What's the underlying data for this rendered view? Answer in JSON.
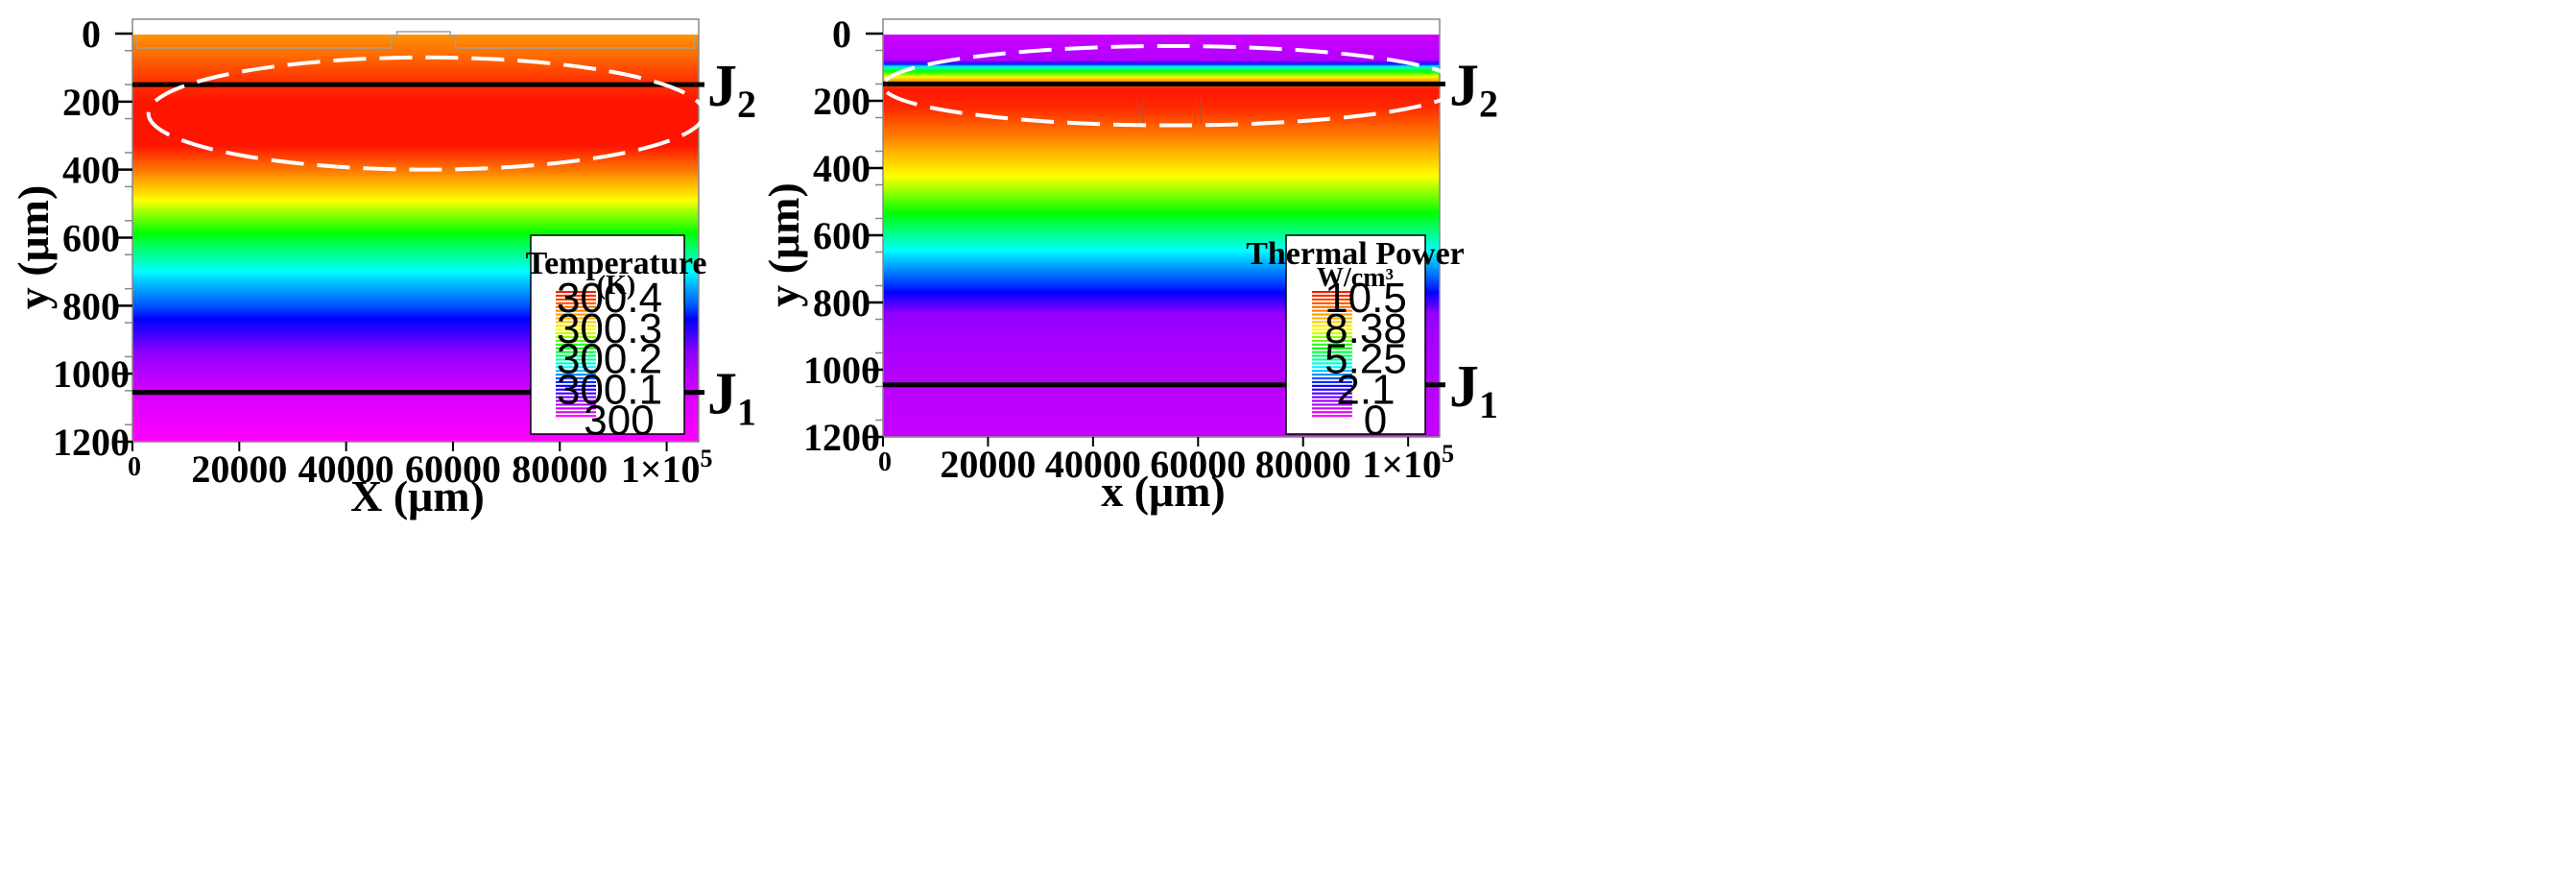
{
  "chart_data": [
    {
      "type": "heatmap",
      "name": "temperature",
      "xlabel": "X (μm)",
      "ylabel": "y (μm)",
      "xlim": [
        0,
        106000
      ],
      "ylim": [
        0,
        1200
      ],
      "y_inverted": true,
      "x_ticks": [
        {
          "value": 0,
          "label": "0"
        },
        {
          "value": 20000,
          "label": "20000"
        },
        {
          "value": 40000,
          "label": "40000"
        },
        {
          "value": 60000,
          "label": "60000"
        },
        {
          "value": 80000,
          "label": "80000"
        },
        {
          "value": 100000,
          "label": "1×10",
          "exp": "5"
        }
      ],
      "y_ticks": [
        {
          "value": 0,
          "label": "0"
        },
        {
          "value": 200,
          "label": "200"
        },
        {
          "value": 400,
          "label": "400"
        },
        {
          "value": 600,
          "label": "600"
        },
        {
          "value": 800,
          "label": "800"
        },
        {
          "value": 1000,
          "label": "1000"
        },
        {
          "value": 1200,
          "label": "1200"
        }
      ],
      "legend": {
        "title_line1": "Temperature",
        "title_line2": "(K)",
        "labels": [
          "300.4",
          "300.3",
          "300.2",
          "300.1",
          "300"
        ],
        "range": [
          300.0,
          300.4
        ]
      },
      "field_profile": [
        {
          "y": -45,
          "value": 300.0
        },
        {
          "y": -1,
          "value": 300.0
        },
        {
          "y": 0,
          "value": 300.33
        },
        {
          "y": 60,
          "value": 300.35
        },
        {
          "y": 130,
          "value": 300.38
        },
        {
          "y": 200,
          "value": 300.4
        },
        {
          "y": 330,
          "value": 300.4
        },
        {
          "y": 420,
          "value": 300.33
        },
        {
          "y": 520,
          "value": 300.26
        },
        {
          "y": 620,
          "value": 300.2
        },
        {
          "y": 720,
          "value": 300.15
        },
        {
          "y": 800,
          "value": 300.12
        },
        {
          "y": 860,
          "value": 300.09
        },
        {
          "y": 940,
          "value": 300.05
        },
        {
          "y": 1050,
          "value": 300.02
        },
        {
          "y": 1200,
          "value": 300.0
        }
      ],
      "junctions": [
        {
          "name": "J",
          "sub": "2",
          "y": 150
        },
        {
          "name": "J",
          "sub": "1",
          "y": 1055
        }
      ],
      "highlight_ellipse": {
        "cx": 55000,
        "cy": 235,
        "rx": 52000,
        "ry": 165
      }
    },
    {
      "type": "heatmap",
      "name": "thermal-power",
      "xlabel": "x (μm)",
      "ylabel": "y (μm)",
      "xlim": [
        0,
        106000
      ],
      "ylim": [
        0,
        1200
      ],
      "y_inverted": true,
      "x_ticks": [
        {
          "value": 0,
          "label": "0"
        },
        {
          "value": 20000,
          "label": "20000"
        },
        {
          "value": 40000,
          "label": "40000"
        },
        {
          "value": 60000,
          "label": "60000"
        },
        {
          "value": 80000,
          "label": "80000"
        },
        {
          "value": 100000,
          "label": "1×10",
          "exp": "5"
        }
      ],
      "y_ticks": [
        {
          "value": 0,
          "label": "0"
        },
        {
          "value": 200,
          "label": "200"
        },
        {
          "value": 400,
          "label": "400"
        },
        {
          "value": 600,
          "label": "600"
        },
        {
          "value": 800,
          "label": "800"
        },
        {
          "value": 1000,
          "label": "1000"
        },
        {
          "value": 1200,
          "label": "1200"
        }
      ],
      "legend": {
        "title_line1": "Thermal Power",
        "title_line2": "W/cm³",
        "labels": [
          "10.5",
          "8.38",
          "5.25",
          "2.1",
          "0"
        ],
        "range": [
          0,
          10.5
        ]
      },
      "field_profile": [
        {
          "y": -45,
          "value": 0.0
        },
        {
          "y": -1,
          "value": 0.0
        },
        {
          "y": 0,
          "value": 0.6
        },
        {
          "y": 80,
          "value": 0.9
        },
        {
          "y": 100,
          "value": 4.5
        },
        {
          "y": 140,
          "value": 8.5
        },
        {
          "y": 165,
          "value": 10.5
        },
        {
          "y": 220,
          "value": 10.2
        },
        {
          "y": 330,
          "value": 8.6
        },
        {
          "y": 450,
          "value": 7.0
        },
        {
          "y": 560,
          "value": 5.4
        },
        {
          "y": 660,
          "value": 4.0
        },
        {
          "y": 760,
          "value": 2.8
        },
        {
          "y": 810,
          "value": 1.8
        },
        {
          "y": 830,
          "value": 1.3
        },
        {
          "y": 900,
          "value": 1.1
        },
        {
          "y": 1060,
          "value": 0.8
        },
        {
          "y": 1200,
          "value": 0.7
        }
      ],
      "junctions": [
        {
          "name": "J",
          "sub": "2",
          "y": 150
        },
        {
          "name": "J",
          "sub": "1",
          "y": 1045
        }
      ],
      "highlight_ellipse": {
        "cx": 55000,
        "cy": 155,
        "rx": 55000,
        "ry": 118
      }
    }
  ]
}
